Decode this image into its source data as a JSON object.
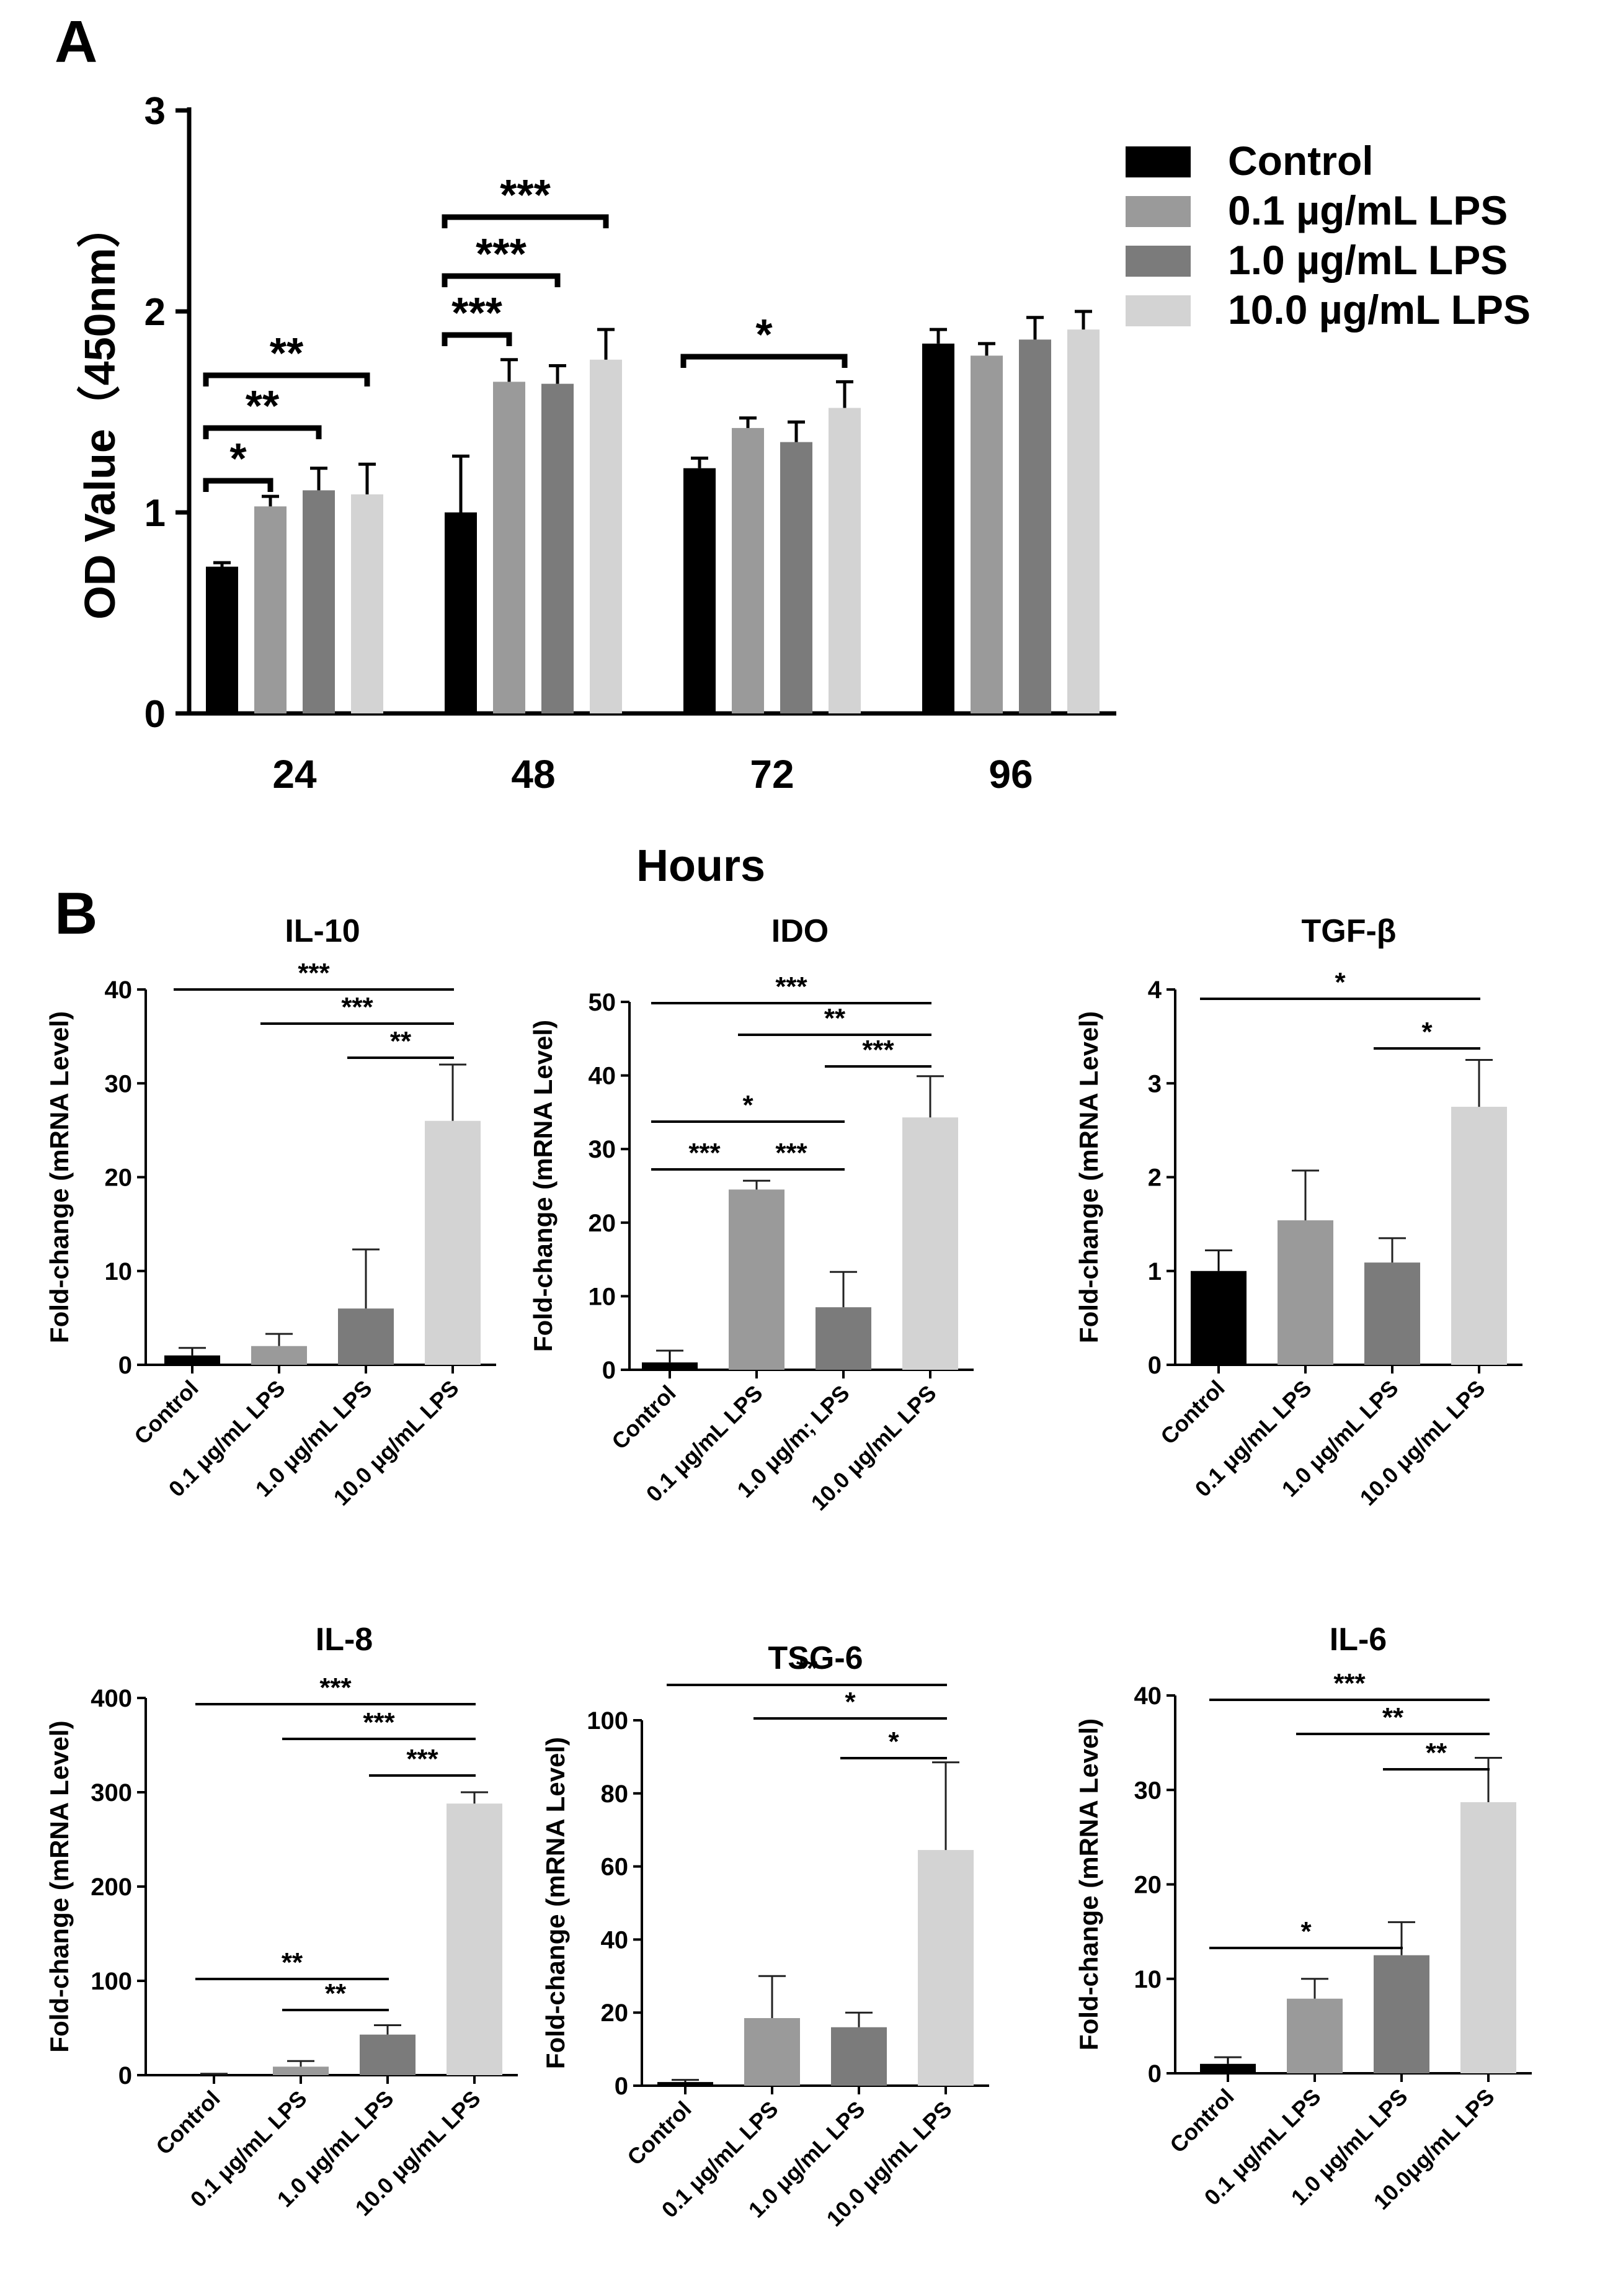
{
  "panel_labels": [
    "A",
    "B"
  ],
  "colors": {
    "Control": "#000000",
    "0.1 µg/mL LPS": "#9a9a9a",
    "1.0 µg/mL LPS": "#7b7b7b",
    "10.0 µg/mL LPS": "#d3d3d3"
  },
  "chart_data": [
    {
      "id": "A",
      "type": "bar",
      "title": "",
      "xlabel": "Hours",
      "ylabel": "OD Value（450nm）",
      "categories": [
        "24",
        "48",
        "72",
        "96"
      ],
      "ylim": [
        0,
        3
      ],
      "yticks": [
        0,
        1,
        2,
        3
      ],
      "legend_position": "right",
      "series": [
        {
          "name": "Control",
          "values": [
            0.73,
            1.0,
            1.22,
            1.84
          ],
          "errors": [
            0.02,
            0.28,
            0.05,
            0.07
          ]
        },
        {
          "name": "0.1 µg/mL LPS",
          "values": [
            1.03,
            1.65,
            1.42,
            1.78
          ],
          "errors": [
            0.05,
            0.11,
            0.05,
            0.06
          ]
        },
        {
          "name": "1.0 µg/mL LPS",
          "values": [
            1.11,
            1.64,
            1.35,
            1.86
          ],
          "errors": [
            0.11,
            0.09,
            0.1,
            0.11
          ]
        },
        {
          "name": "10.0 µg/mL LPS",
          "values": [
            1.09,
            1.76,
            1.52,
            1.91
          ],
          "errors": [
            0.15,
            0.15,
            0.13,
            0.09
          ]
        }
      ],
      "significance": [
        {
          "category": "24",
          "from": 0,
          "to": 1,
          "label": "*",
          "level": 0
        },
        {
          "category": "24",
          "from": 0,
          "to": 2,
          "label": "**",
          "level": 1
        },
        {
          "category": "24",
          "from": 0,
          "to": 3,
          "label": "**",
          "level": 2
        },
        {
          "category": "48",
          "from": 0,
          "to": 1,
          "label": "***",
          "level": 0
        },
        {
          "category": "48",
          "from": 0,
          "to": 2,
          "label": "***",
          "level": 1
        },
        {
          "category": "48",
          "from": 0,
          "to": 3,
          "label": "***",
          "level": 2
        },
        {
          "category": "72",
          "from": 0,
          "to": 3,
          "label": "*",
          "level": 0
        }
      ]
    },
    {
      "id": "IL-10",
      "type": "bar",
      "title": "IL-10",
      "ylabel": "Fold-change (mRNA Level)",
      "categories": [
        "Control",
        "0.1 μg/mL LPS",
        "1.0 μg/mL LPS",
        "10.0 μg/mL LPS"
      ],
      "values": [
        1,
        2,
        6,
        26
      ],
      "errors": [
        0.8,
        1.3,
        6.3,
        6
      ],
      "ylim": [
        0,
        40
      ],
      "yticks": [
        0,
        10,
        20,
        30,
        40
      ],
      "significance": [
        {
          "from": 0,
          "to": 3,
          "label": "***"
        },
        {
          "from": 1,
          "to": 3,
          "label": "***"
        },
        {
          "from": 2,
          "to": 3,
          "label": "**"
        }
      ]
    },
    {
      "id": "IDO",
      "type": "bar",
      "title": "IDO",
      "ylabel": "Fold-change (mRNA Level)",
      "categories": [
        "Control",
        "0.1 μg/mL LPS",
        "1.0 μg/m; LPS",
        "10.0 μg/mL LPS"
      ],
      "values": [
        1,
        24.5,
        8.5,
        34.3
      ],
      "errors": [
        1.6,
        1.2,
        4.8,
        5.6
      ],
      "ylim": [
        0,
        50
      ],
      "yticks": [
        0,
        10,
        20,
        30,
        40,
        50
      ],
      "significance": [
        {
          "from": 0,
          "to": 3,
          "label": "***"
        },
        {
          "from": 1,
          "to": 3,
          "label": "**"
        },
        {
          "from": 2,
          "to": 3,
          "label": "***"
        },
        {
          "from": 0,
          "to": 2,
          "label": "*"
        },
        {
          "from": 0,
          "to": 1,
          "label": "***"
        },
        {
          "from": 1,
          "to": 2,
          "label": "***"
        }
      ]
    },
    {
      "id": "TGF-β",
      "type": "bar",
      "title": "TGF-β",
      "ylabel": "Fold-change (mRNA Level)",
      "categories": [
        "Control",
        "0.1 μg/mL LPS",
        "1.0 μg/mL LPS",
        "10.0 μg/mL LPS"
      ],
      "values": [
        1,
        1.54,
        1.09,
        2.75
      ],
      "errors": [
        0.22,
        0.53,
        0.26,
        0.5
      ],
      "ylim": [
        0,
        4
      ],
      "yticks": [
        0,
        1,
        2,
        3,
        4
      ],
      "significance": [
        {
          "from": 0,
          "to": 3,
          "label": "*"
        },
        {
          "from": 2,
          "to": 3,
          "label": "*"
        }
      ]
    },
    {
      "id": "IL-8",
      "type": "bar",
      "title": "IL-8",
      "ylabel": "Fold-change (mRNA Level)",
      "categories": [
        "Control",
        "0.1 μg/mL LPS",
        "1.0 μg/mL LPS",
        "10.0 μg/mL LPS"
      ],
      "values": [
        1,
        9,
        43,
        288
      ],
      "errors": [
        0.5,
        6,
        10,
        12
      ],
      "ylim": [
        0,
        400
      ],
      "yticks": [
        0,
        100,
        200,
        300,
        400
      ],
      "significance": [
        {
          "from": 0,
          "to": 3,
          "label": "***"
        },
        {
          "from": 1,
          "to": 3,
          "label": "***"
        },
        {
          "from": 2,
          "to": 3,
          "label": "***"
        },
        {
          "from": 0,
          "to": 2,
          "label": "**"
        },
        {
          "from": 1,
          "to": 2,
          "label": "**"
        }
      ]
    },
    {
      "id": "TSG-6",
      "type": "bar",
      "title": "TSG-6",
      "ylabel": "Fold-change (mRNA Level)",
      "categories": [
        "Control",
        "0.1 μg/mL LPS",
        "1.0 μg/mL LPS",
        "10.0 μg/mL LPS"
      ],
      "values": [
        1,
        18.5,
        16,
        64.5
      ],
      "errors": [
        0.6,
        11.5,
        4,
        24
      ],
      "ylim": [
        0,
        100
      ],
      "yticks": [
        0,
        20,
        40,
        60,
        80,
        100
      ],
      "significance": [
        {
          "from": 0,
          "to": 3,
          "label": "**"
        },
        {
          "from": 1,
          "to": 3,
          "label": "*"
        },
        {
          "from": 2,
          "to": 3,
          "label": "*"
        }
      ]
    },
    {
      "id": "IL-6",
      "type": "bar",
      "title": "IL-6",
      "ylabel": "Fold-change (mRNA Level)",
      "categories": [
        "Control",
        "0.1 μg/mL LPS",
        "1.0 μg/mL LPS",
        "10.0μg/mL LPS"
      ],
      "values": [
        1,
        7.9,
        12.5,
        28.7
      ],
      "errors": [
        0.7,
        2.1,
        3.5,
        4.7
      ],
      "ylim": [
        0,
        40
      ],
      "yticks": [
        0,
        10,
        20,
        30,
        40
      ],
      "significance": [
        {
          "from": 0,
          "to": 3,
          "label": "***"
        },
        {
          "from": 1,
          "to": 3,
          "label": "**"
        },
        {
          "from": 2,
          "to": 3,
          "label": "**"
        },
        {
          "from": 0,
          "to": 2,
          "label": "*"
        }
      ]
    }
  ]
}
